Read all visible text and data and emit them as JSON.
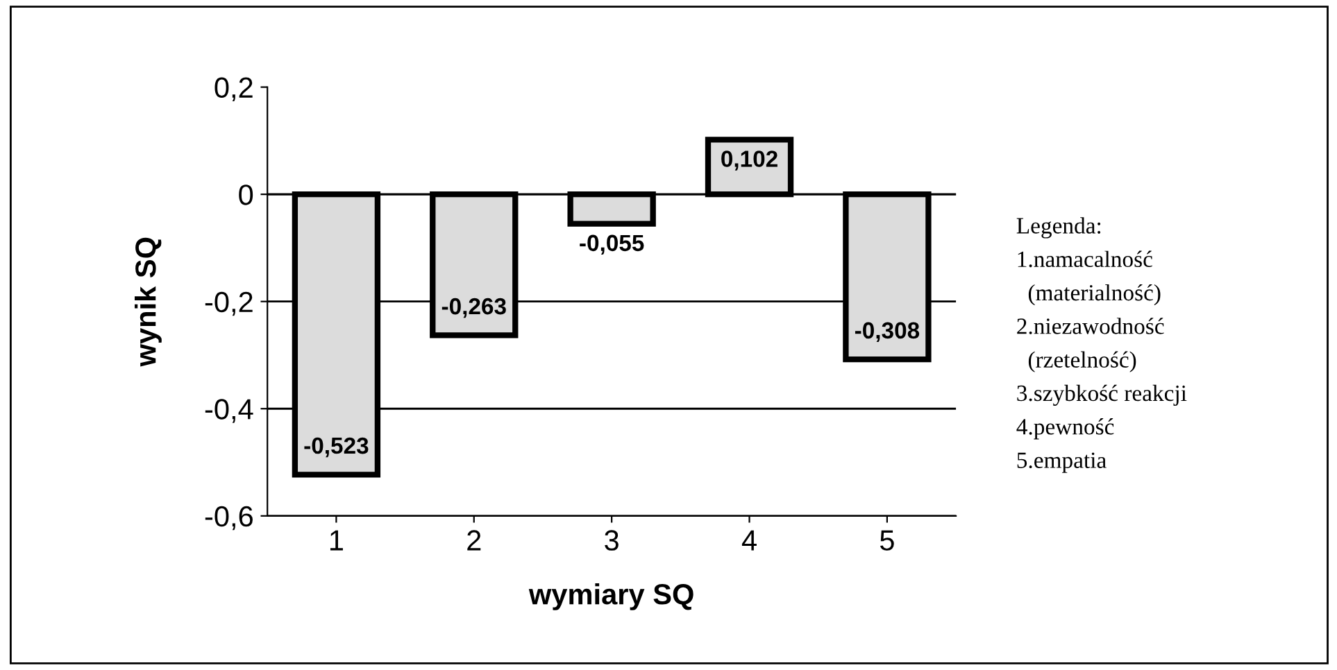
{
  "chart_data": {
    "type": "bar",
    "xlabel": "wymiary SQ",
    "ylabel": "wynik SQ",
    "categories": [
      "1",
      "2",
      "3",
      "4",
      "5"
    ],
    "values": [
      -0.523,
      -0.263,
      -0.055,
      0.102,
      -0.308
    ],
    "value_labels": [
      "-0,523",
      "-0,263",
      "-0,055",
      "0,102",
      "-0,308"
    ],
    "color": "#dcdcdc",
    "ylim": [
      -0.6,
      0.2
    ],
    "yticks": [
      {
        "value": -0.6,
        "label": "-0,6"
      },
      {
        "value": -0.4,
        "label": "-0,4"
      },
      {
        "value": -0.2,
        "label": "-0,2"
      },
      0,
      {
        "value": 0.2,
        "label": "0,2"
      }
    ],
    "grid": "y",
    "annotations": [
      "Legenda:",
      "1.namacalność",
      "  (materialność)",
      "2.niezawodność",
      "  (rzetelność)",
      "3.szybkość reakcji",
      "4.pewność",
      "5.empatia"
    ]
  }
}
